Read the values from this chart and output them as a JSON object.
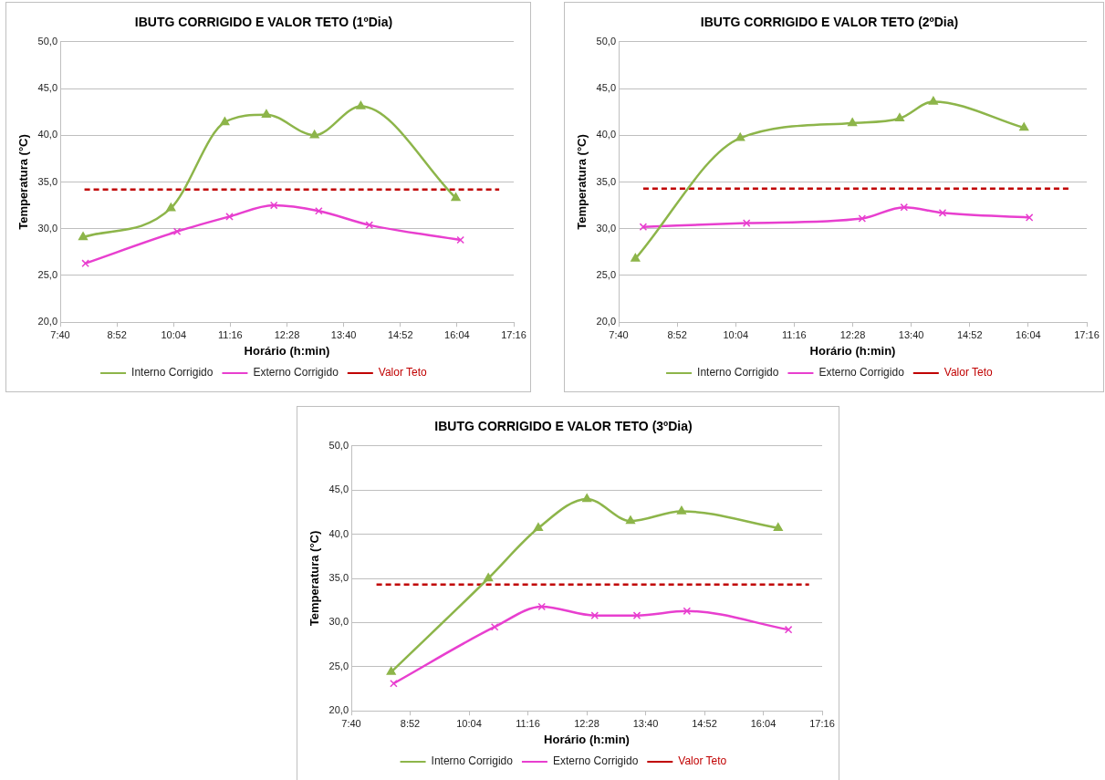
{
  "chart_data": [
    {
      "type": "line",
      "title": "IBUTG CORRIGIDO E VALOR TETO (1ºDia)",
      "xlabel": "Horário (h:min)",
      "ylabel": "Temperatura (°C)",
      "xlim": [
        7.6667,
        17.2667
      ],
      "xticks": [
        {
          "value": 7.6667,
          "label": "7:40"
        },
        {
          "value": 8.8667,
          "label": "8:52"
        },
        {
          "value": 10.0667,
          "label": "10:04"
        },
        {
          "value": 11.2667,
          "label": "11:16"
        },
        {
          "value": 12.4667,
          "label": "12:28"
        },
        {
          "value": 13.6667,
          "label": "13:40"
        },
        {
          "value": 14.8667,
          "label": "14:52"
        },
        {
          "value": 16.0667,
          "label": "16:04"
        },
        {
          "value": 17.2667,
          "label": "17:16"
        }
      ],
      "ylim": [
        20,
        50
      ],
      "yticks": [
        {
          "value": 20,
          "label": "20,0"
        },
        {
          "value": 25,
          "label": "25,0"
        },
        {
          "value": 30,
          "label": "30,0"
        },
        {
          "value": 35,
          "label": "35,0"
        },
        {
          "value": 40,
          "label": "40,0"
        },
        {
          "value": 45,
          "label": "45,0"
        },
        {
          "value": 50,
          "label": "50,0"
        }
      ],
      "grid": "y",
      "legend": "bottom",
      "series": [
        {
          "name": "Interno Corrigido",
          "color": "#8db54a",
          "marker": "triangle",
          "line_style": "solid",
          "x": [
            8.15,
            10.01,
            11.15,
            12.03,
            13.05,
            14.03,
            16.04
          ],
          "values": [
            29.1,
            32.2,
            41.4,
            42.2,
            40.0,
            43.1,
            33.3
          ]
        },
        {
          "name": "Externo Corrigido",
          "color": "#e83fcf",
          "marker": "cross",
          "line_style": "solid",
          "x": [
            8.2,
            10.14,
            11.25,
            12.19,
            13.14,
            14.21,
            16.14
          ],
          "values": [
            26.3,
            29.7,
            31.3,
            32.5,
            31.9,
            30.4,
            28.8
          ]
        },
        {
          "name": "Valor Teto",
          "color": "#c00000",
          "marker": "none",
          "line_style": "dashed",
          "x": [
            8.18,
            16.96
          ],
          "values": [
            34.2,
            34.2
          ]
        }
      ]
    },
    {
      "type": "line",
      "title": "IBUTG CORRIGIDO E VALOR TETO (2ºDia)",
      "xlabel": "Horário (h:min)",
      "ylabel": "Temperatura (°C)",
      "xlim": [
        7.6667,
        17.2667
      ],
      "xticks": [
        {
          "value": 7.6667,
          "label": "7:40"
        },
        {
          "value": 8.8667,
          "label": "8:52"
        },
        {
          "value": 10.0667,
          "label": "10:04"
        },
        {
          "value": 11.2667,
          "label": "11:16"
        },
        {
          "value": 12.4667,
          "label": "12:28"
        },
        {
          "value": 13.6667,
          "label": "13:40"
        },
        {
          "value": 14.8667,
          "label": "14:52"
        },
        {
          "value": 16.0667,
          "label": "16:04"
        },
        {
          "value": 17.2667,
          "label": "17:16"
        }
      ],
      "ylim": [
        20,
        50
      ],
      "yticks": [
        {
          "value": 20,
          "label": "20,0"
        },
        {
          "value": 25,
          "label": "25,0"
        },
        {
          "value": 30,
          "label": "30,0"
        },
        {
          "value": 35,
          "label": "35,0"
        },
        {
          "value": 40,
          "label": "40,0"
        },
        {
          "value": 45,
          "label": "45,0"
        },
        {
          "value": 50,
          "label": "50,0"
        }
      ],
      "grid": "y",
      "legend": "bottom",
      "series": [
        {
          "name": "Interno Corrigido",
          "color": "#8db54a",
          "marker": "triangle",
          "line_style": "solid",
          "x": [
            8.01,
            10.16,
            12.46,
            13.43,
            14.12,
            15.98
          ],
          "values": [
            26.8,
            39.7,
            41.3,
            41.8,
            43.6,
            40.8
          ]
        },
        {
          "name": "Externo Corrigido",
          "color": "#e83fcf",
          "marker": "cross",
          "line_style": "solid",
          "x": [
            8.17,
            10.29,
            12.66,
            13.52,
            14.31,
            16.09
          ],
          "values": [
            30.2,
            30.6,
            31.1,
            32.3,
            31.7,
            31.2
          ]
        },
        {
          "name": "Valor Teto",
          "color": "#c00000",
          "marker": "none",
          "line_style": "dashed",
          "x": [
            8.17,
            16.95
          ],
          "values": [
            34.3,
            34.3
          ]
        }
      ]
    },
    {
      "type": "line",
      "title": "IBUTG CORRIGIDO E VALOR TETO (3ºDia)",
      "xlabel": "Horário (h:min)",
      "ylabel": "Temperatura (°C)",
      "xlim": [
        7.6667,
        17.2667
      ],
      "xticks": [
        {
          "value": 7.6667,
          "label": "7:40"
        },
        {
          "value": 8.8667,
          "label": "8:52"
        },
        {
          "value": 10.0667,
          "label": "10:04"
        },
        {
          "value": 11.2667,
          "label": "11:16"
        },
        {
          "value": 12.4667,
          "label": "12:28"
        },
        {
          "value": 13.6667,
          "label": "13:40"
        },
        {
          "value": 14.8667,
          "label": "14:52"
        },
        {
          "value": 16.0667,
          "label": "16:04"
        },
        {
          "value": 17.2667,
          "label": "17:16"
        }
      ],
      "ylim": [
        20,
        50
      ],
      "yticks": [
        {
          "value": 20,
          "label": "20,0"
        },
        {
          "value": 25,
          "label": "25,0"
        },
        {
          "value": 30,
          "label": "30,0"
        },
        {
          "value": 35,
          "label": "35,0"
        },
        {
          "value": 40,
          "label": "40,0"
        },
        {
          "value": 45,
          "label": "45,0"
        },
        {
          "value": 50,
          "label": "50,0"
        }
      ],
      "grid": "y",
      "legend": "bottom",
      "series": [
        {
          "name": "Interno Corrigido",
          "color": "#8db54a",
          "marker": "triangle",
          "line_style": "solid",
          "x": [
            8.48,
            10.46,
            11.48,
            12.47,
            13.36,
            14.4,
            16.37
          ],
          "values": [
            24.4,
            35.0,
            40.7,
            44.0,
            41.5,
            42.6,
            40.7
          ]
        },
        {
          "name": "Externo Corrigido",
          "color": "#e83fcf",
          "marker": "cross",
          "line_style": "solid",
          "x": [
            8.53,
            10.59,
            11.55,
            12.63,
            13.49,
            14.51,
            16.58
          ],
          "values": [
            23.1,
            29.5,
            31.8,
            30.8,
            30.8,
            31.3,
            29.2
          ]
        },
        {
          "name": "Valor Teto",
          "color": "#c00000",
          "marker": "none",
          "line_style": "dashed",
          "x": [
            8.18,
            17.0
          ],
          "values": [
            34.3,
            34.3
          ]
        }
      ]
    }
  ]
}
